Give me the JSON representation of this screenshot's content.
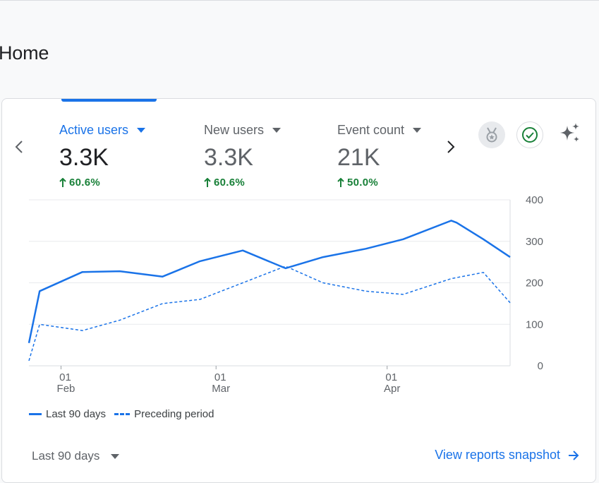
{
  "page": {
    "title": "Home"
  },
  "metrics": [
    {
      "label": "Active users",
      "value": "3.3K",
      "change": "60.6%",
      "active": true
    },
    {
      "label": "New users",
      "value": "3.3K",
      "change": "60.6%",
      "active": false
    },
    {
      "label": "Event count",
      "value": "21K",
      "change": "50.0%",
      "active": false
    }
  ],
  "icons": {
    "prev": "chevron-left-icon",
    "next": "chevron-right-icon",
    "medal": "medal-icon",
    "check": "check-circle-icon",
    "sparkle": "sparkle-icon"
  },
  "colors": {
    "accent": "#1a73e8",
    "positive": "#188038",
    "grid": "#e8eaed"
  },
  "chart_data": {
    "type": "line",
    "title": "",
    "ylim": [
      0,
      400
    ],
    "yticks": [
      "0",
      "100",
      "200",
      "300",
      "400"
    ],
    "xticks": [
      {
        "day": "01",
        "month": "Feb",
        "index": 6
      },
      {
        "day": "01",
        "month": "Mar",
        "index": 35
      },
      {
        "day": "01",
        "month": "Apr",
        "index": 67
      }
    ],
    "x_count": 91,
    "series": [
      {
        "name": "Last 90 days",
        "style": "solid",
        "points": [
          [
            0,
            55
          ],
          [
            2,
            180
          ],
          [
            10,
            226
          ],
          [
            17,
            228
          ],
          [
            25,
            215
          ],
          [
            32,
            252
          ],
          [
            40,
            278
          ],
          [
            48,
            235
          ],
          [
            55,
            262
          ],
          [
            63,
            282
          ],
          [
            70,
            305
          ],
          [
            79,
            350
          ],
          [
            80,
            345
          ],
          [
            85,
            305
          ],
          [
            90,
            262
          ]
        ]
      },
      {
        "name": "Preceding period",
        "style": "dashed",
        "points": [
          [
            0,
            12
          ],
          [
            2,
            100
          ],
          [
            10,
            85
          ],
          [
            17,
            110
          ],
          [
            25,
            150
          ],
          [
            32,
            160
          ],
          [
            40,
            200
          ],
          [
            48,
            240
          ],
          [
            55,
            200
          ],
          [
            63,
            180
          ],
          [
            70,
            172
          ],
          [
            79,
            210
          ],
          [
            85,
            225
          ],
          [
            90,
            152
          ]
        ]
      }
    ],
    "legend": [
      "Last 90 days",
      "Preceding period"
    ]
  },
  "footer": {
    "range_label": "Last 90 days",
    "link_label": "View reports snapshot"
  }
}
